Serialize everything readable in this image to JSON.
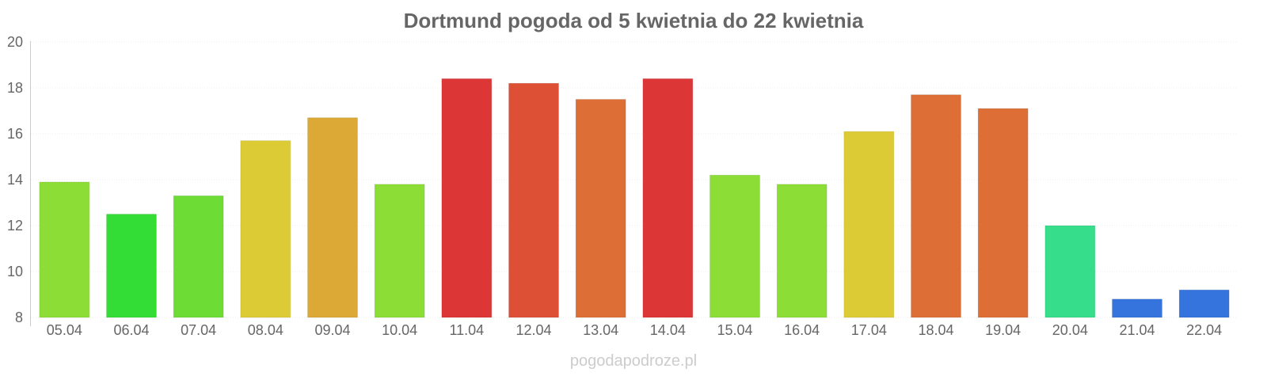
{
  "chart_data": {
    "type": "bar",
    "title": "Dortmund pogoda od 5 kwietnia do 22 kwietnia",
    "xlabel": "",
    "ylabel": "",
    "ylim": [
      8,
      20
    ],
    "yticks": [
      "8",
      "10",
      "12",
      "14",
      "16",
      "18",
      "20"
    ],
    "grid": true,
    "categories": [
      "05.04",
      "06.04",
      "07.04",
      "08.04",
      "09.04",
      "10.04",
      "11.04",
      "12.04",
      "13.04",
      "14.04",
      "15.04",
      "16.04",
      "17.04",
      "18.04",
      "19.04",
      "20.04",
      "21.04",
      "22.04"
    ],
    "values": [
      13.9,
      12.5,
      13.3,
      15.7,
      16.7,
      13.8,
      18.4,
      18.2,
      17.5,
      18.4,
      14.2,
      13.8,
      16.1,
      17.7,
      17.1,
      12.0,
      8.8,
      9.2
    ],
    "colors": [
      "#8cdd36",
      "#34dd36",
      "#6ddd36",
      "#ddcb36",
      "#dda936",
      "#8cdd36",
      "#dd3636",
      "#dd5036",
      "#dd6e36",
      "#dd3636",
      "#8cdd36",
      "#8cdd36",
      "#ddcb36",
      "#dd6e36",
      "#dd6e36",
      "#36dd8a",
      "#3674dd",
      "#3674dd"
    ]
  },
  "watermark": "pogodapodroze.pl"
}
